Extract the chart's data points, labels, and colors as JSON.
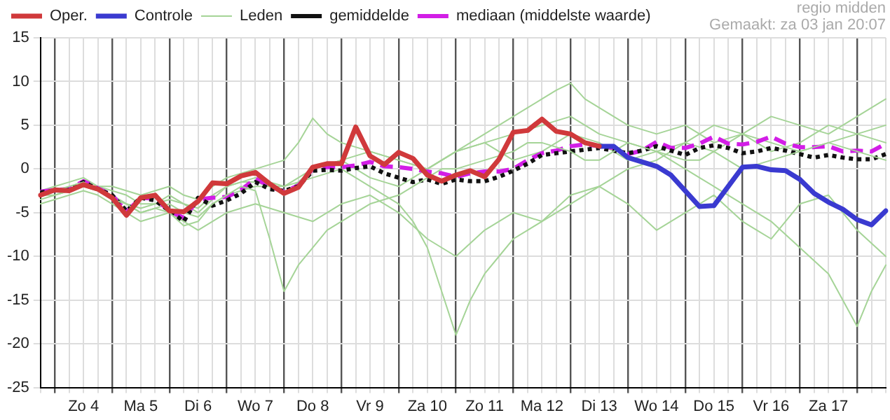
{
  "chart_data": {
    "type": "line",
    "annotations": [
      "regio midden",
      "Gemaakt: za 03 jan 20:07"
    ],
    "categories": [
      null,
      null,
      null,
      "Zo 4",
      null,
      null,
      null,
      "Ma 5",
      null,
      null,
      null,
      "Di 6",
      null,
      null,
      null,
      "Wo 7",
      null,
      null,
      null,
      "Do 8",
      null,
      null,
      null,
      "Vr 9",
      null,
      null,
      null,
      "Za 10",
      null,
      null,
      null,
      "Zo 11",
      null,
      null,
      null,
      "Ma 12",
      null,
      null,
      null,
      "Di 13",
      null,
      null,
      null,
      "Wo 14",
      null,
      null,
      null,
      "Do 15",
      null,
      null,
      null,
      "Vr 16",
      null,
      null,
      null,
      "Za 17",
      null,
      null,
      null,
      null
    ],
    "series": [
      {
        "name": "Oper.",
        "color": "#d0393b",
        "values": [
          -3.0,
          -2.4,
          -2.5,
          -1.8,
          -2.3,
          -3.3,
          -5.3,
          -3.3,
          -3.0,
          -4.8,
          -4.9,
          -3.7,
          -1.6,
          -1.7,
          -0.8,
          -0.4,
          -1.7,
          -2.8,
          -2.1,
          0.2,
          0.6,
          0.6,
          4.8,
          1.5,
          0.5,
          1.9,
          1.2,
          -0.7,
          -1.4,
          -0.7,
          -0.2,
          -0.9,
          1.1,
          4.2,
          4.4,
          5.7,
          4.3,
          4.0,
          3.0,
          2.6,
          null,
          null,
          null,
          null,
          null,
          null,
          null,
          null,
          null,
          null,
          null,
          null,
          null,
          null,
          null,
          null,
          null,
          null,
          null,
          null
        ]
      },
      {
        "name": "Controle",
        "color": "#3a3ad0",
        "values": [
          null,
          null,
          null,
          null,
          null,
          null,
          null,
          null,
          null,
          null,
          null,
          null,
          null,
          null,
          null,
          null,
          null,
          null,
          null,
          null,
          null,
          null,
          null,
          null,
          null,
          null,
          null,
          null,
          null,
          null,
          null,
          null,
          null,
          null,
          null,
          null,
          null,
          null,
          null,
          2.6,
          2.6,
          1.3,
          0.8,
          0.3,
          -0.7,
          -2.5,
          -4.3,
          -4.2,
          -2.0,
          0.2,
          0.3,
          -0.1,
          -0.2,
          -1.2,
          -2.8,
          -3.8,
          -4.6,
          -5.8,
          -6.4,
          -4.8
        ]
      },
      {
        "name": "Leden",
        "color": "#a5d497",
        "values": [
          -3,
          -2.5,
          -2,
          -1.5,
          -2.5,
          -3.5,
          -4,
          -5,
          -4.5,
          -5,
          -6.5,
          -6,
          -4,
          -3,
          -2,
          -2.5,
          -8,
          -14,
          -11,
          -9,
          -7,
          -6,
          -5,
          -4,
          -3.5,
          -3,
          -2,
          -1,
          0,
          0,
          0.5,
          1,
          1.5,
          2,
          3,
          3,
          2.5,
          2,
          1,
          1,
          2,
          3,
          2.5,
          2,
          1.5,
          1,
          1,
          2,
          1,
          0,
          0.5,
          1,
          1.5,
          2,
          2.5,
          3,
          2.5,
          2,
          1.5,
          1
        ]
      },
      {
        "name": "gemiddelde",
        "color": "#111111",
        "line_style": "dotted",
        "values": [
          -2.7,
          -2.5,
          -2.4,
          -1.5,
          -2.3,
          -3.0,
          -4.8,
          -3.3,
          -3.6,
          -4.8,
          -6.0,
          -3.3,
          -4.2,
          -3.6,
          -2.8,
          -1.5,
          -2.3,
          -2.5,
          -2.0,
          -0.2,
          -0.1,
          -0.2,
          0.1,
          0.3,
          -0.5,
          -1.0,
          -1.5,
          -1.2,
          -1.7,
          -1.2,
          -1.4,
          -1.4,
          -0.9,
          -0.2,
          0.6,
          1.6,
          1.8,
          2.0,
          2.2,
          2.4,
          2.1,
          1.8,
          2.1,
          2.6,
          2.1,
          1.6,
          2.4,
          2.7,
          2.4,
          1.8,
          2.0,
          2.4,
          2.1,
          1.7,
          1.3,
          1.6,
          1.3,
          1.1,
          1.1,
          1.7
        ]
      },
      {
        "name": "mediaan (middelste waarde)",
        "color": "#d21ee6",
        "line_style": "dashed",
        "values": [
          -2.6,
          -2.4,
          -2.3,
          -1.4,
          -2.2,
          -3.0,
          -4.9,
          -3.3,
          -3.4,
          -4.8,
          -5.6,
          -3.5,
          -3.3,
          -3.2,
          -2.4,
          -1.1,
          -2.0,
          -2.6,
          -1.9,
          0.0,
          0.2,
          0.2,
          0.4,
          0.8,
          0.3,
          0.2,
          0.0,
          -0.3,
          -0.5,
          -0.9,
          -0.5,
          -0.3,
          -0.3,
          0.0,
          1.0,
          1.8,
          2.1,
          2.6,
          2.8,
          2.6,
          2.4,
          1.7,
          2.1,
          3.1,
          2.4,
          2.4,
          2.9,
          3.7,
          2.9,
          2.8,
          3.1,
          3.7,
          2.9,
          2.5,
          2.5,
          2.6,
          2.0,
          2.1,
          2.0,
          2.9
        ]
      },
      {
        "color": "#a5d497",
        "values": [
          -3.5,
          -3,
          -2.5,
          -2,
          -2.5,
          -3,
          -4,
          -4.5,
          -4,
          -3,
          -4,
          -5,
          -3.5,
          -2,
          -1.5,
          -1,
          -1.5,
          -2,
          -1.5,
          -1,
          -0.5,
          0,
          -1,
          -2,
          -3,
          -4,
          -6,
          -9,
          -14,
          -19,
          -15,
          -12,
          -10,
          -8,
          -7,
          -6,
          -5,
          -4,
          -3,
          -2,
          -1,
          0,
          0.5,
          1,
          2,
          3,
          2.5,
          2,
          3,
          4,
          3.5,
          3,
          2.5,
          2,
          2.5,
          3,
          3.5,
          4,
          4.5,
          5
        ]
      },
      {
        "color": "#a5d497",
        "values": [
          -2.5,
          -2,
          -1.5,
          -1,
          -2,
          -2.5,
          -3,
          -4,
          -4,
          -3.5,
          -4,
          -4.5,
          -3,
          -2,
          -1.5,
          -1.5,
          -2,
          -3,
          -1.5,
          0,
          0.5,
          1,
          1.5,
          2,
          1.5,
          1,
          0.5,
          0,
          1,
          2,
          2.5,
          3,
          3.5,
          4,
          4.5,
          5,
          5.5,
          6,
          5,
          4,
          3.5,
          3,
          2.5,
          2,
          1,
          0,
          -1,
          -2,
          -3,
          -4,
          -5,
          -6,
          -7.5,
          -9,
          -10.5,
          -12,
          -15,
          -18,
          -14,
          -11
        ]
      },
      {
        "color": "#a5d497",
        "values": [
          -3,
          -3,
          -2.5,
          -2,
          -2,
          -2,
          -2.5,
          -3,
          -2.5,
          -2,
          -3,
          -3.5,
          -2,
          -1,
          -0.5,
          0,
          0.5,
          1,
          3,
          5.8,
          4,
          3,
          2.5,
          2,
          1.5,
          1,
          0.5,
          0,
          1,
          2,
          3,
          4,
          5,
          6,
          7,
          8,
          9,
          9.8,
          8,
          7,
          6,
          5,
          4.5,
          4,
          4.5,
          5,
          4,
          3,
          3.5,
          4,
          5,
          6,
          5.5,
          5,
          4.5,
          4,
          5,
          6,
          7,
          8
        ]
      },
      {
        "color": "#a5d497",
        "values": [
          -4,
          -3.5,
          -3,
          -2.5,
          -3,
          -4,
          -5,
          -6,
          -5.5,
          -5,
          -6,
          -7,
          -6,
          -5,
          -4.5,
          -4,
          -4.5,
          -5,
          -5.5,
          -6,
          -5,
          -4,
          -3.5,
          -3,
          -4,
          -5,
          -6.5,
          -8,
          -9,
          -10,
          -8.5,
          -7,
          -6,
          -5,
          -5.5,
          -6,
          -4.5,
          -3,
          -2.5,
          -2,
          -3,
          -4,
          -5.5,
          -7,
          -6,
          -5,
          -4,
          -3,
          -4.5,
          -6,
          -7,
          -8,
          -6,
          -4,
          -3.5,
          -3,
          -5,
          -7,
          -8.5,
          -10
        ]
      },
      {
        "color": "#a5d497",
        "values": [
          -3,
          -2.5,
          -2.5,
          -2,
          -2.5,
          -3,
          -4,
          -5,
          -4.5,
          -4,
          -5,
          -5.5,
          -4,
          -3,
          -2.5,
          -2,
          -2,
          -2,
          -1,
          0,
          0.5,
          1,
          0,
          -1,
          -1.5,
          -2,
          -1,
          0,
          1,
          2,
          2.5,
          3,
          2,
          1,
          1.5,
          2,
          3,
          4,
          3.5,
          3,
          2,
          1,
          1.5,
          2,
          2.5,
          3,
          4,
          5,
          4.5,
          4,
          3,
          2,
          2.5,
          3,
          4,
          5,
          4.5,
          4,
          3.5,
          3
        ]
      }
    ],
    "ylim": [
      -25,
      15
    ],
    "yticks": [
      -25,
      -20,
      -15,
      -10,
      -5,
      0,
      5,
      10,
      15
    ],
    "grid": true,
    "legend": "top left",
    "marker": "none"
  }
}
